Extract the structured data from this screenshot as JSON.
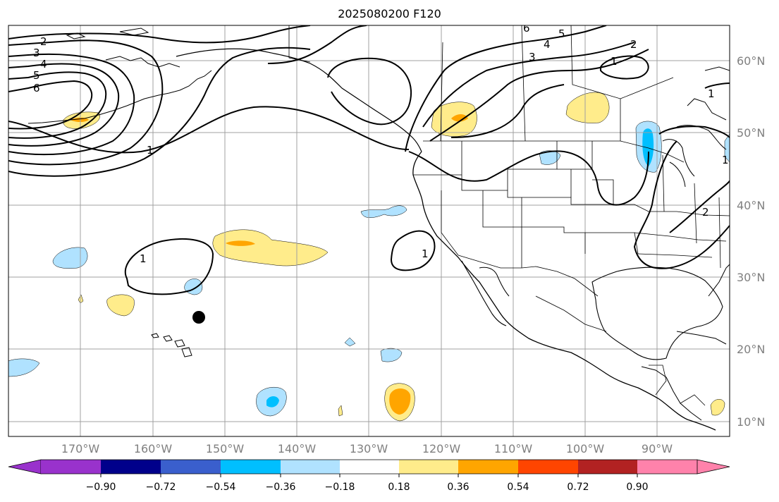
{
  "title": "2025080200 F120",
  "lat_labels": [
    "60°N",
    "50°N",
    "40°N",
    "30°N",
    "20°N",
    "10°N"
  ],
  "lon_labels": [
    "170°W",
    "160°W",
    "150°W",
    "140°W",
    "130°W",
    "120°W",
    "110°W",
    "100°W",
    "90°W"
  ],
  "contour_labels": [
    "2",
    "3",
    "4",
    "5",
    "6",
    "1",
    "1",
    "1",
    "1",
    "1",
    "6",
    "5",
    "4",
    "3",
    "2",
    "1",
    "2"
  ],
  "colorbar": {
    "ticks": [
      "−0.90",
      "−0.72",
      "−0.54",
      "−0.36",
      "−0.18",
      "0.18",
      "0.36",
      "0.54",
      "0.72",
      "0.90"
    ],
    "colors": [
      "#9932cc",
      "#00008b",
      "#3a5fcd",
      "#00bfff",
      "#b0e2ff",
      "#ffffff",
      "#ffec8b",
      "#ffa500",
      "#ff4500",
      "#b22222",
      "#ff82ab"
    ]
  },
  "colors": {
    "light_blue": "#b0e2ff",
    "cyan": "#00bfff",
    "yellow": "#ffec8b",
    "orange": "#ffa500",
    "grid": "#a0a0a0",
    "axis_label": "#808080"
  },
  "markers": [
    {
      "label": "",
      "lon": -153.5,
      "lat": 24.5
    }
  ]
}
